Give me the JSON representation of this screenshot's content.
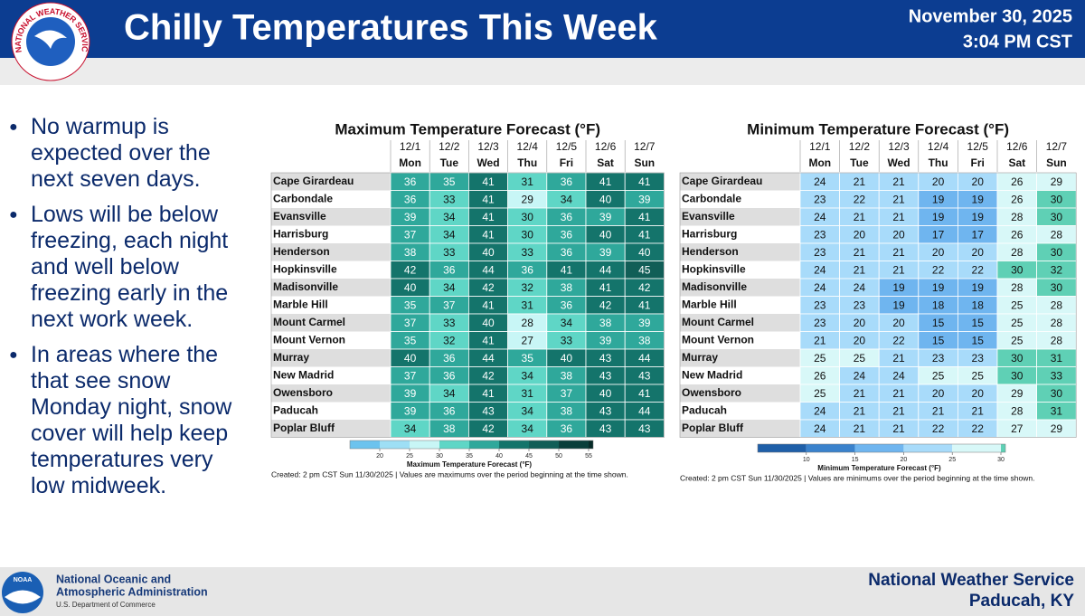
{
  "header": {
    "logo_text": "NATIONAL WEATHER SERVICE",
    "title": "Chilly Temperatures This Week",
    "date": "November 30, 2025",
    "time": "3:04 PM CST"
  },
  "bullets": [
    "No warmup is expected over the next seven days.",
    "Lows will be below freezing, each night and well below freezing early in the next work week.",
    "In areas where the that see snow Monday night, snow cover will help keep temperatures very low midweek."
  ],
  "tables": [
    {
      "title": "Maximum Temperature Forecast (°F)",
      "dates": [
        "12/1",
        "12/2",
        "12/3",
        "12/4",
        "12/5",
        "12/6",
        "12/7"
      ],
      "days": [
        "Mon",
        "Tue",
        "Wed",
        "Thu",
        "Fri",
        "Sat",
        "Sun"
      ],
      "rows": [
        {
          "city": "Cape Girardeau",
          "values": [
            36,
            35,
            41,
            31,
            36,
            41,
            41
          ]
        },
        {
          "city": "Carbondale",
          "values": [
            36,
            33,
            41,
            29,
            34,
            40,
            39
          ]
        },
        {
          "city": "Evansville",
          "values": [
            39,
            34,
            41,
            30,
            36,
            39,
            41
          ]
        },
        {
          "city": "Harrisburg",
          "values": [
            37,
            34,
            41,
            30,
            36,
            40,
            41
          ]
        },
        {
          "city": "Henderson",
          "values": [
            38,
            33,
            40,
            33,
            36,
            39,
            40
          ]
        },
        {
          "city": "Hopkinsville",
          "values": [
            42,
            36,
            44,
            36,
            41,
            44,
            45
          ]
        },
        {
          "city": "Madisonville",
          "values": [
            40,
            34,
            42,
            32,
            38,
            41,
            42
          ]
        },
        {
          "city": "Marble Hill",
          "values": [
            35,
            37,
            41,
            31,
            36,
            42,
            41
          ]
        },
        {
          "city": "Mount Carmel",
          "values": [
            37,
            33,
            40,
            28,
            34,
            38,
            39
          ]
        },
        {
          "city": "Mount Vernon",
          "values": [
            35,
            32,
            41,
            27,
            33,
            39,
            38
          ]
        },
        {
          "city": "Murray",
          "values": [
            40,
            36,
            44,
            35,
            40,
            43,
            44
          ]
        },
        {
          "city": "New Madrid",
          "values": [
            37,
            36,
            42,
            34,
            38,
            43,
            43
          ]
        },
        {
          "city": "Owensboro",
          "values": [
            39,
            34,
            41,
            31,
            37,
            40,
            41
          ]
        },
        {
          "city": "Paducah",
          "values": [
            39,
            36,
            43,
            34,
            38,
            43,
            44
          ]
        },
        {
          "city": "Poplar Bluff",
          "values": [
            34,
            38,
            42,
            34,
            36,
            43,
            43
          ]
        }
      ],
      "color_scale": {
        "label": "Maximum Temperature Forecast (°F)",
        "ticks": [
          20,
          25,
          30,
          35,
          40,
          45,
          50,
          55
        ],
        "colors": [
          "#6cc3ee",
          "#9edff5",
          "#c8f6f6",
          "#5fd6c6",
          "#2fa89b",
          "#14746b",
          "#115e57",
          "#0a3f3b",
          "#072b28"
        ]
      },
      "footnote": "Created: 2 pm CST Sun 11/30/2025  |  Values are maximums over the period beginning at the time shown."
    },
    {
      "title": "Minimum Temperature Forecast (°F)",
      "dates": [
        "12/1",
        "12/2",
        "12/3",
        "12/4",
        "12/5",
        "12/6",
        "12/7"
      ],
      "days": [
        "Mon",
        "Tue",
        "Wed",
        "Thu",
        "Fri",
        "Sat",
        "Sun"
      ],
      "rows": [
        {
          "city": "Cape Girardeau",
          "values": [
            24,
            21,
            21,
            20,
            20,
            26,
            29
          ]
        },
        {
          "city": "Carbondale",
          "values": [
            23,
            22,
            21,
            19,
            19,
            26,
            30
          ]
        },
        {
          "city": "Evansville",
          "values": [
            24,
            21,
            21,
            19,
            19,
            28,
            30
          ]
        },
        {
          "city": "Harrisburg",
          "values": [
            23,
            20,
            20,
            17,
            17,
            26,
            28
          ]
        },
        {
          "city": "Henderson",
          "values": [
            23,
            21,
            21,
            20,
            20,
            28,
            30
          ]
        },
        {
          "city": "Hopkinsville",
          "values": [
            24,
            21,
            21,
            22,
            22,
            30,
            32
          ]
        },
        {
          "city": "Madisonville",
          "values": [
            24,
            24,
            19,
            19,
            19,
            28,
            30
          ]
        },
        {
          "city": "Marble Hill",
          "values": [
            23,
            23,
            19,
            18,
            18,
            25,
            28
          ]
        },
        {
          "city": "Mount Carmel",
          "values": [
            23,
            20,
            20,
            15,
            15,
            25,
            28
          ]
        },
        {
          "city": "Mount Vernon",
          "values": [
            21,
            20,
            22,
            15,
            15,
            25,
            28
          ]
        },
        {
          "city": "Murray",
          "values": [
            25,
            25,
            21,
            23,
            23,
            30,
            31
          ]
        },
        {
          "city": "New Madrid",
          "values": [
            26,
            24,
            24,
            25,
            25,
            30,
            33
          ]
        },
        {
          "city": "Owensboro",
          "values": [
            25,
            21,
            21,
            20,
            20,
            29,
            30
          ]
        },
        {
          "city": "Paducah",
          "values": [
            24,
            21,
            21,
            21,
            21,
            28,
            31
          ]
        },
        {
          "city": "Poplar Bluff",
          "values": [
            24,
            21,
            21,
            22,
            22,
            27,
            29
          ]
        }
      ],
      "color_scale": {
        "label": "Minimum Temperature Forecast (°F)",
        "ticks": [
          10,
          15,
          20,
          25,
          30
        ],
        "colors": [
          "#1f5fa8",
          "#3a82cc",
          "#6fb5ef",
          "#a8dbfa",
          "#d8f8f8",
          "#5fd0b5"
        ]
      },
      "footnote": "Created: 2 pm CST Sun 11/30/2025  |  Values are minimums over the period beginning at the time shown."
    }
  ],
  "footer": {
    "noaa_logo": "NOAA",
    "agency": [
      "National Oceanic and",
      "Atmospheric Administration"
    ],
    "department": "U.S. Department of Commerce",
    "office": "National Weather Service",
    "location": "Paducah, KY"
  }
}
